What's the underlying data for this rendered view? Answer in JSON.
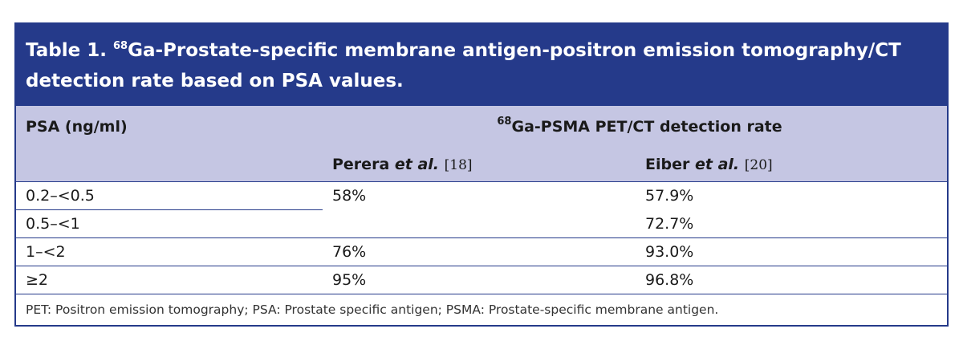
{
  "table": {
    "title": {
      "label": "Table 1.",
      "isotope_mass": "68",
      "text": "Ga-Prostate-specific membrane antigen-positron emission tomography/CT detection rate based on PSA values."
    },
    "header": {
      "psa": "PSA (ng/ml)",
      "group": {
        "isotope_mass": "68",
        "text": "Ga-PSMA PET/CT detection rate"
      },
      "columns": [
        {
          "author": "Perera",
          "etal": "et al.",
          "ref": "[18]"
        },
        {
          "author": "Eiber",
          "etal": "et al.",
          "ref": "[20]"
        }
      ]
    },
    "rows": [
      {
        "psa": "0.2–<0.5",
        "perera": "58%",
        "eiber": "57.9%"
      },
      {
        "psa": "0.5–<1",
        "eiber": "72.7%"
      },
      {
        "psa": "1–<2",
        "perera": "76%",
        "eiber": "93.0%"
      },
      {
        "psa": "≥2",
        "perera": "95%",
        "eiber": "96.8%"
      }
    ],
    "footnote": "PET: Positron emission tomography; PSA: Prostate specific antigen; PSMA: Prostate-specific membrane antigen."
  }
}
